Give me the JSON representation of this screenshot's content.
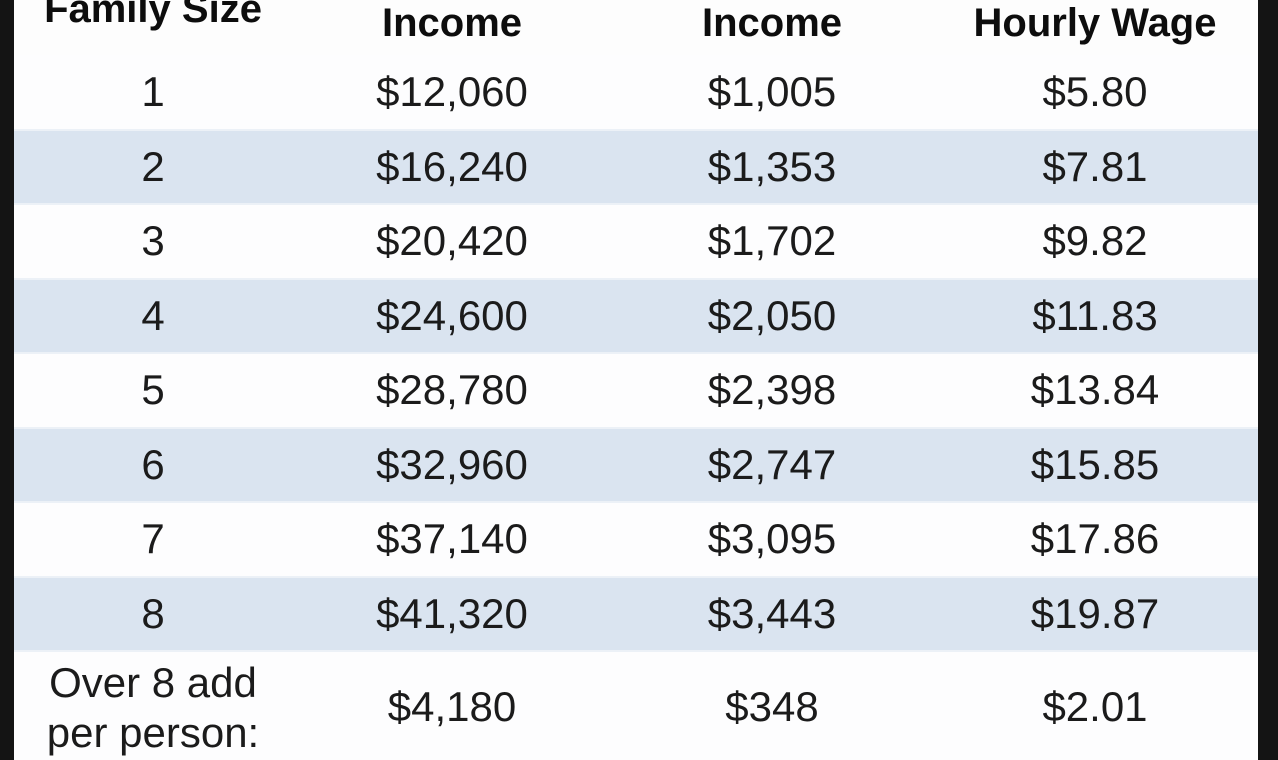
{
  "chart_data": {
    "type": "table",
    "columns": [
      "Family Size",
      "Income",
      "Income",
      "Hourly Wage"
    ],
    "rows": [
      [
        "1",
        "$12,060",
        "$1,005",
        "$5.80"
      ],
      [
        "2",
        "$16,240",
        "$1,353",
        "$7.81"
      ],
      [
        "3",
        "$20,420",
        "$1,702",
        "$9.82"
      ],
      [
        "4",
        "$24,600",
        "$2,050",
        "$11.83"
      ],
      [
        "5",
        "$28,780",
        "$2,398",
        "$13.84"
      ],
      [
        "6",
        "$32,960",
        "$2,747",
        "$15.85"
      ],
      [
        "7",
        "$37,140",
        "$3,095",
        "$17.86"
      ],
      [
        "8",
        "$41,320",
        "$3,443",
        "$19.87"
      ],
      [
        "Over 8 add per person:",
        "$4,180",
        "$348",
        "$2.01"
      ]
    ],
    "layout_hints": {
      "striped": "alternate rows shaded light blue (rows 2,4,6,8)",
      "header_partially_cropped": "top of 'Family Size' header text cut off by image crop"
    }
  },
  "table": {
    "columns": [
      {
        "label": "Family Size"
      },
      {
        "label": "Income"
      },
      {
        "label": "Income"
      },
      {
        "label": "Hourly Wage"
      }
    ],
    "rows": [
      {
        "family_size": "1",
        "annual_income": "$12,060",
        "monthly_income": "$1,005",
        "hourly_wage": "$5.80",
        "shaded": false
      },
      {
        "family_size": "2",
        "annual_income": "$16,240",
        "monthly_income": "$1,353",
        "hourly_wage": "$7.81",
        "shaded": true
      },
      {
        "family_size": "3",
        "annual_income": "$20,420",
        "monthly_income": "$1,702",
        "hourly_wage": "$9.82",
        "shaded": false
      },
      {
        "family_size": "4",
        "annual_income": "$24,600",
        "monthly_income": "$2,050",
        "hourly_wage": "$11.83",
        "shaded": true
      },
      {
        "family_size": "5",
        "annual_income": "$28,780",
        "monthly_income": "$2,398",
        "hourly_wage": "$13.84",
        "shaded": false
      },
      {
        "family_size": "6",
        "annual_income": "$32,960",
        "monthly_income": "$2,747",
        "hourly_wage": "$15.85",
        "shaded": true
      },
      {
        "family_size": "7",
        "annual_income": "$37,140",
        "monthly_income": "$3,095",
        "hourly_wage": "$17.86",
        "shaded": false
      },
      {
        "family_size": "8",
        "annual_income": "$41,320",
        "monthly_income": "$3,443",
        "hourly_wage": "$19.87",
        "shaded": true
      },
      {
        "family_size": "Over 8 add per person:",
        "annual_income": "$4,180",
        "monthly_income": "$348",
        "hourly_wage": "$2.01",
        "shaded": false
      }
    ]
  },
  "colors": {
    "row_shaded": "#dae4f0",
    "row_plain": "#fdfdfe",
    "frame_border": "#141414",
    "text": "#1b1b1b"
  }
}
